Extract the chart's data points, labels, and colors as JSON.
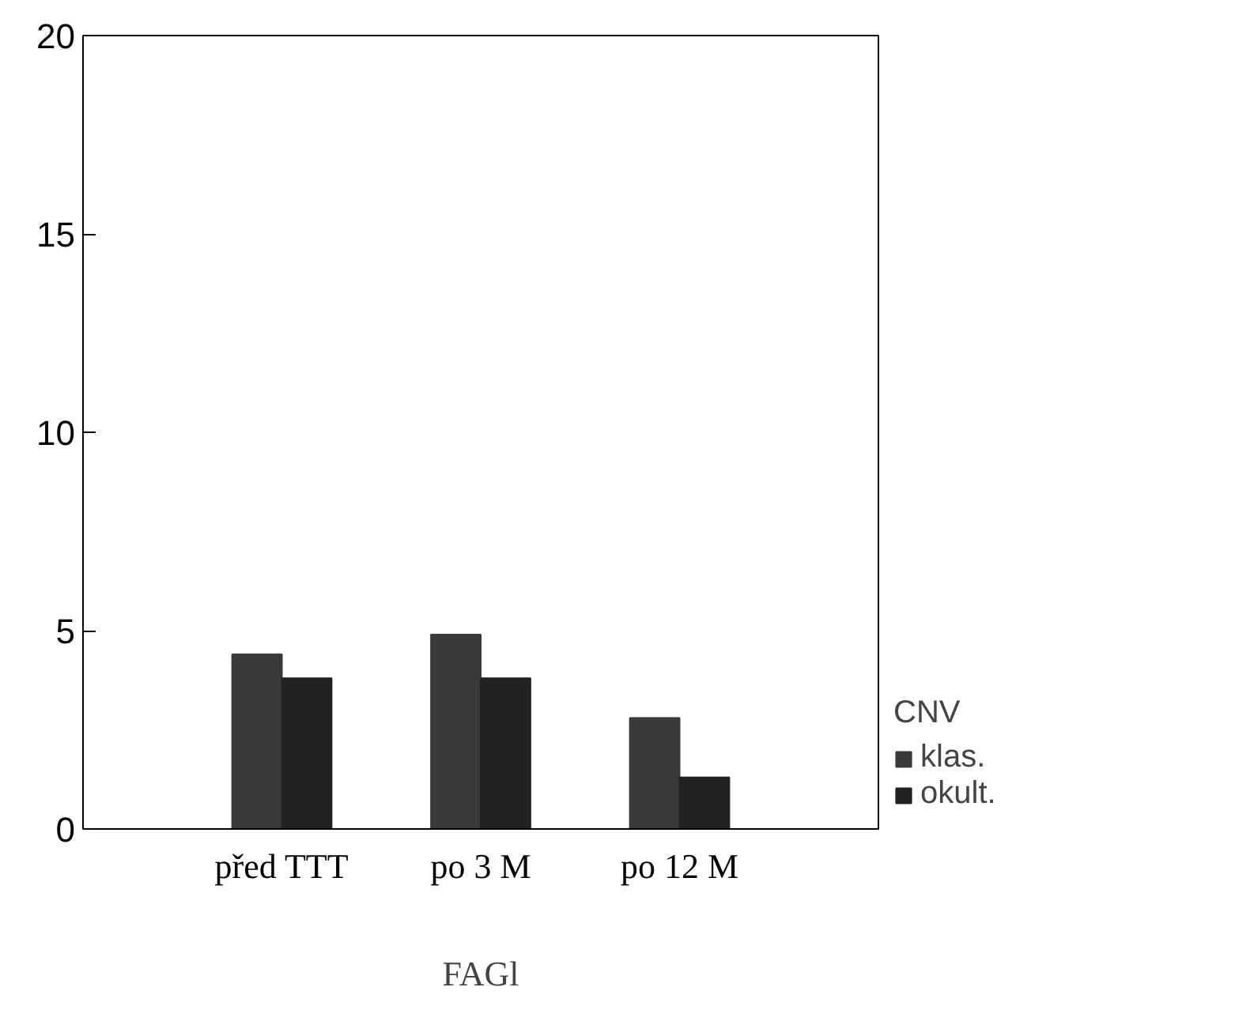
{
  "chart_data": {
    "type": "bar",
    "xlabel": "FAGl",
    "legend_title": "CNV",
    "categories": [
      "před TTT",
      "po 3 M",
      "po 12 M"
    ],
    "series": [
      {
        "name": "klas.",
        "color": "#3a3a3a",
        "values": [
          4.4,
          4.9,
          2.8
        ]
      },
      {
        "name": "okult.",
        "color": "#222222",
        "values": [
          3.8,
          3.8,
          1.3
        ]
      }
    ],
    "ylim": [
      0,
      20
    ],
    "yticks": [
      0,
      5,
      10,
      15,
      20
    ],
    "grid": false,
    "legend": "right"
  }
}
